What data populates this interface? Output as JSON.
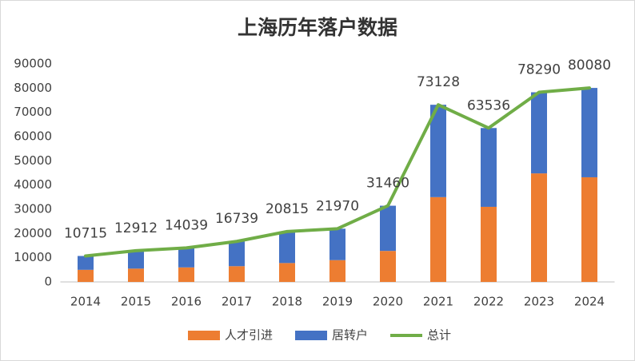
{
  "chart_data": {
    "type": "bar",
    "stacked": true,
    "title": "上海历年落户数据",
    "categories": [
      "2014",
      "2015",
      "2016",
      "2017",
      "2018",
      "2019",
      "2020",
      "2021",
      "2022",
      "2023",
      "2024"
    ],
    "series": [
      {
        "name": "人才引进",
        "type": "bar",
        "color": "#ed7d31",
        "values": [
          5000,
          5500,
          6000,
          6500,
          7800,
          9000,
          12800,
          35000,
          31000,
          44800,
          43200
        ]
      },
      {
        "name": "居转户",
        "type": "bar",
        "color": "#4472c4",
        "values": [
          5715,
          7412,
          8039,
          10239,
          13015,
          12970,
          18660,
          38128,
          32536,
          33490,
          36880
        ]
      },
      {
        "name": "总计",
        "type": "line",
        "color": "#70ad47",
        "show_labels": true,
        "values": [
          10715,
          12912,
          14039,
          16739,
          20815,
          21970,
          31460,
          73128,
          63536,
          78290,
          80080
        ]
      }
    ],
    "ylim": [
      0,
      90000
    ],
    "yticks": [
      0,
      10000,
      20000,
      30000,
      40000,
      50000,
      60000,
      70000,
      80000,
      90000
    ],
    "grid": false,
    "legend": "bottom"
  }
}
